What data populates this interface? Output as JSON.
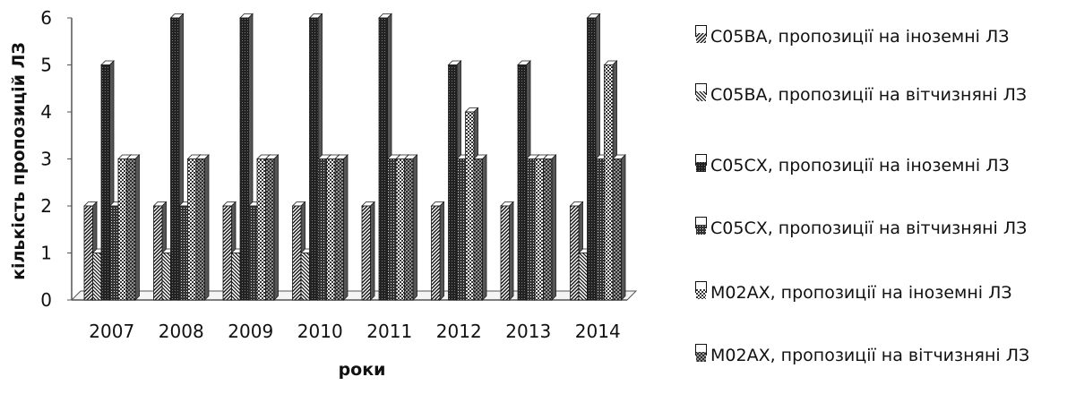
{
  "chart_data": {
    "type": "bar",
    "categories": [
      "2007",
      "2008",
      "2009",
      "2010",
      "2011",
      "2012",
      "2013",
      "2014"
    ],
    "series": [
      {
        "name": "C05BA, пропозиції на іноземні ЛЗ",
        "values": [
          2,
          2,
          2,
          2,
          2,
          2,
          2,
          2
        ]
      },
      {
        "name": "C05BA, пропозиції на вітчизняні ЛЗ",
        "values": [
          1,
          1,
          1,
          1,
          0,
          0,
          0,
          1
        ]
      },
      {
        "name": "C05CX, пропозиції на іноземні ЛЗ",
        "values": [
          5,
          6,
          6,
          6,
          6,
          5,
          5,
          6
        ]
      },
      {
        "name": "C05CX, пропозиції на вітчизняні ЛЗ",
        "values": [
          2,
          2,
          2,
          3,
          3,
          3,
          3,
          3
        ]
      },
      {
        "name": "M02AX, пропозиції на іноземні ЛЗ",
        "values": [
          3,
          3,
          3,
          3,
          3,
          4,
          3,
          5
        ]
      },
      {
        "name": "M02AX, пропозиції на вітчизняні ЛЗ",
        "values": [
          3,
          3,
          3,
          3,
          3,
          3,
          3,
          3
        ]
      }
    ],
    "xlabel": "роки",
    "ylabel": "кількість пропозицій ЛЗ",
    "ylim": [
      0,
      6
    ],
    "yticks": [
      "0",
      "1",
      "2",
      "3",
      "4",
      "5",
      "6"
    ],
    "legend_position": "right",
    "grid": false,
    "colors": {
      "bar_fill": "#ffffff",
      "bar_ink": "#1a1a1a",
      "axis": "#555555"
    },
    "patterns": [
      "diag-up-fine",
      "diag-down-fine",
      "dark-grid",
      "dense-dots",
      "checker",
      "crosshatch"
    ]
  }
}
